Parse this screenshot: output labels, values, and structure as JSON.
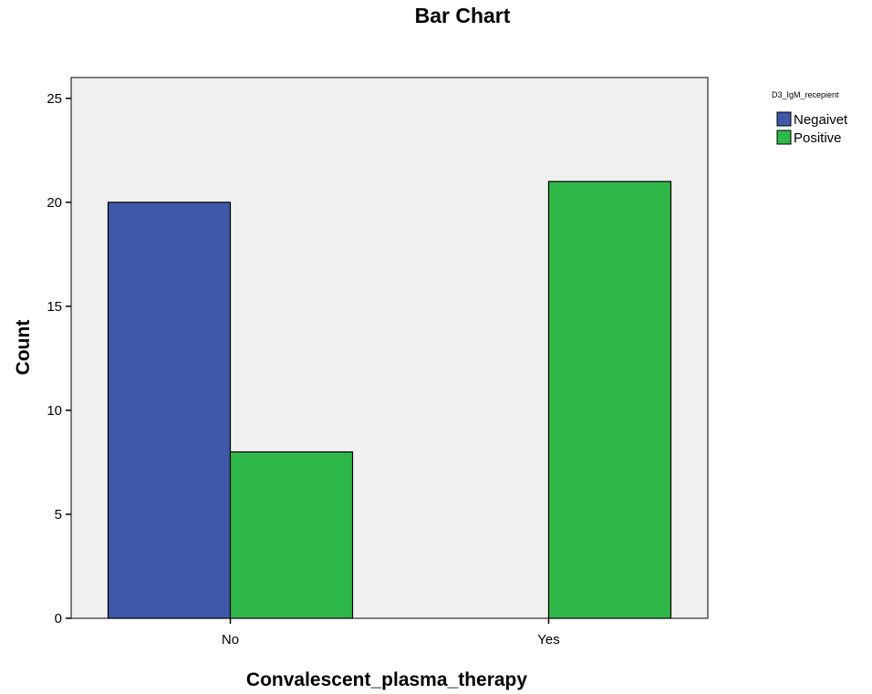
{
  "chart_data": {
    "type": "bar",
    "title": "Bar Chart",
    "xlabel": "Convalescent_plasma_therapy",
    "ylabel": "Count",
    "categories": [
      "No",
      "Yes"
    ],
    "series": [
      {
        "name": "Negaivet",
        "values": [
          20,
          0
        ],
        "color": "#3F58A9"
      },
      {
        "name": "Positive",
        "values": [
          8,
          21
        ],
        "color": "#2FB84A"
      }
    ],
    "ylim": [
      0,
      26
    ],
    "yticks": [
      0,
      5,
      10,
      15,
      20,
      25
    ],
    "legend": {
      "title": "D3_IgM_recepient",
      "placement": "top-right"
    },
    "plot_background": "#F0F0F0",
    "grid": false
  }
}
